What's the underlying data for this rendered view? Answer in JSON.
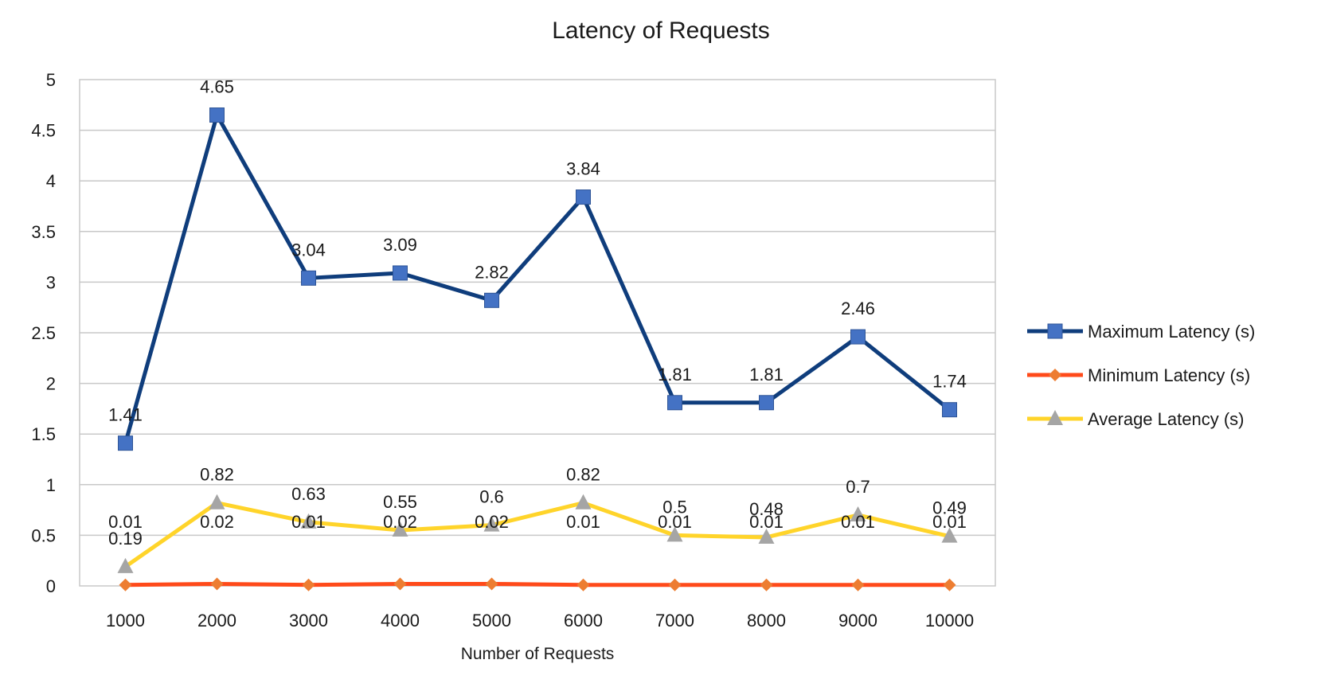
{
  "chart_data": {
    "type": "line",
    "title": "Latency of Requests",
    "xlabel": "Number of Requests",
    "ylabel": "",
    "categories": [
      "1000",
      "2000",
      "3000",
      "4000",
      "5000",
      "6000",
      "7000",
      "8000",
      "9000",
      "10000"
    ],
    "ylim": [
      0,
      5
    ],
    "yticks": [
      "0",
      "0.5",
      "1",
      "1.5",
      "2",
      "2.5",
      "3",
      "3.5",
      "4",
      "4.5",
      "5"
    ],
    "grid": true,
    "legend_position": "right",
    "series": [
      {
        "name": "Maximum Latency (s)",
        "color": "#0f3d7c",
        "marker": "square",
        "marker_color": "#4472c4",
        "values": [
          1.41,
          4.65,
          3.04,
          3.09,
          2.82,
          3.84,
          1.81,
          1.81,
          2.46,
          1.74
        ],
        "labels": [
          "1.41",
          "4.65",
          "3.04",
          "3.09",
          "2.82",
          "3.84",
          "1.81",
          "1.81",
          "2.46",
          "1.74"
        ]
      },
      {
        "name": "Minimum Latency (s)",
        "color": "#ff4a1a",
        "marker": "diamond",
        "marker_color": "#ed7d31",
        "values": [
          0.01,
          0.02,
          0.01,
          0.02,
          0.02,
          0.01,
          0.01,
          0.01,
          0.01,
          0.01
        ],
        "labels": [
          "0.01",
          "0.02",
          "0.01",
          "0.02",
          "0.02",
          "0.01",
          "0.01",
          "0.01",
          "0.01",
          "0.01"
        ]
      },
      {
        "name": "Average Latency (s)",
        "color": "#ffd42a",
        "marker": "triangle",
        "marker_color": "#a5a5a5",
        "values": [
          0.19,
          0.82,
          0.63,
          0.55,
          0.6,
          0.82,
          0.5,
          0.48,
          0.7,
          0.49
        ],
        "labels": [
          "0.19",
          "0.82",
          "0.63",
          "0.55",
          "0.6",
          "0.82",
          "0.5",
          "0.48",
          "0.7",
          "0.49"
        ]
      }
    ]
  }
}
